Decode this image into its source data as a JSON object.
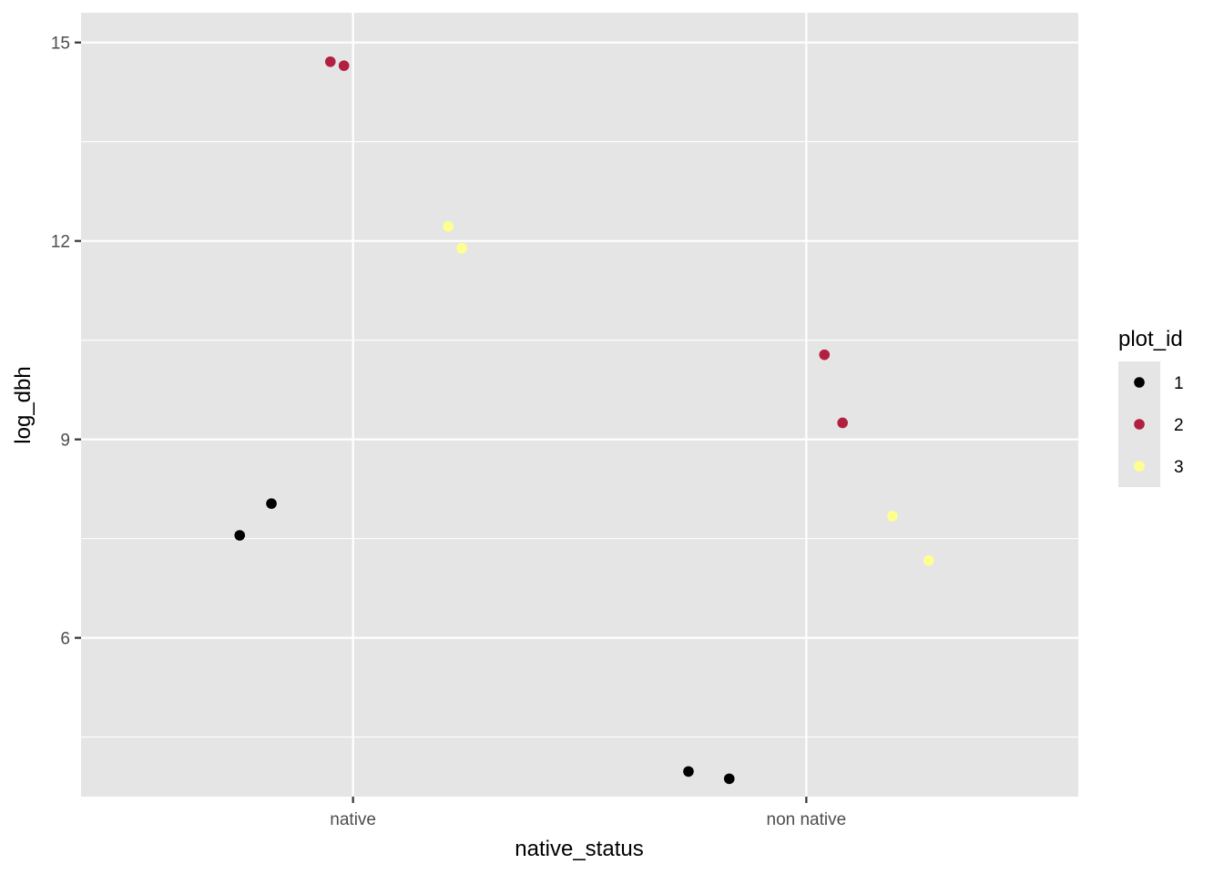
{
  "chart_data": {
    "type": "scatter",
    "title": "",
    "xlabel": "native_status",
    "ylabel": "log_dbh",
    "categories": [
      "native",
      "non native"
    ],
    "ylim": [
      3.6,
      15.45
    ],
    "yticks": [
      6,
      9,
      12,
      15
    ],
    "y_minor_ticks": [
      4.5,
      7.5,
      10.5,
      13.5
    ],
    "grid": true,
    "legend": {
      "title": "plot_id",
      "placement": "right",
      "entries": [
        {
          "label": "1",
          "color": "#000000"
        },
        {
          "label": "2",
          "color": "#b1203f"
        },
        {
          "label": "3",
          "color": "#ffff8f"
        }
      ]
    },
    "series": [
      {
        "plot_id": "1",
        "color": "#000000",
        "points": [
          {
            "category": "native",
            "jitter": -0.25,
            "y": 7.55
          },
          {
            "category": "native",
            "jitter": -0.18,
            "y": 8.03
          },
          {
            "category": "non native",
            "jitter": -0.26,
            "y": 3.98
          },
          {
            "category": "non native",
            "jitter": -0.17,
            "y": 3.87
          }
        ]
      },
      {
        "plot_id": "2",
        "color": "#b1203f",
        "points": [
          {
            "category": "native",
            "jitter": -0.05,
            "y": 14.71
          },
          {
            "category": "native",
            "jitter": -0.02,
            "y": 14.65
          },
          {
            "category": "non native",
            "jitter": 0.04,
            "y": 10.28
          },
          {
            "category": "non native",
            "jitter": 0.08,
            "y": 9.25
          }
        ]
      },
      {
        "plot_id": "3",
        "color": "#ffff8f",
        "points": [
          {
            "category": "native",
            "jitter": 0.21,
            "y": 12.22
          },
          {
            "category": "native",
            "jitter": 0.24,
            "y": 11.89
          },
          {
            "category": "non native",
            "jitter": 0.19,
            "y": 7.84
          },
          {
            "category": "non native",
            "jitter": 0.27,
            "y": 7.17
          }
        ]
      }
    ]
  }
}
